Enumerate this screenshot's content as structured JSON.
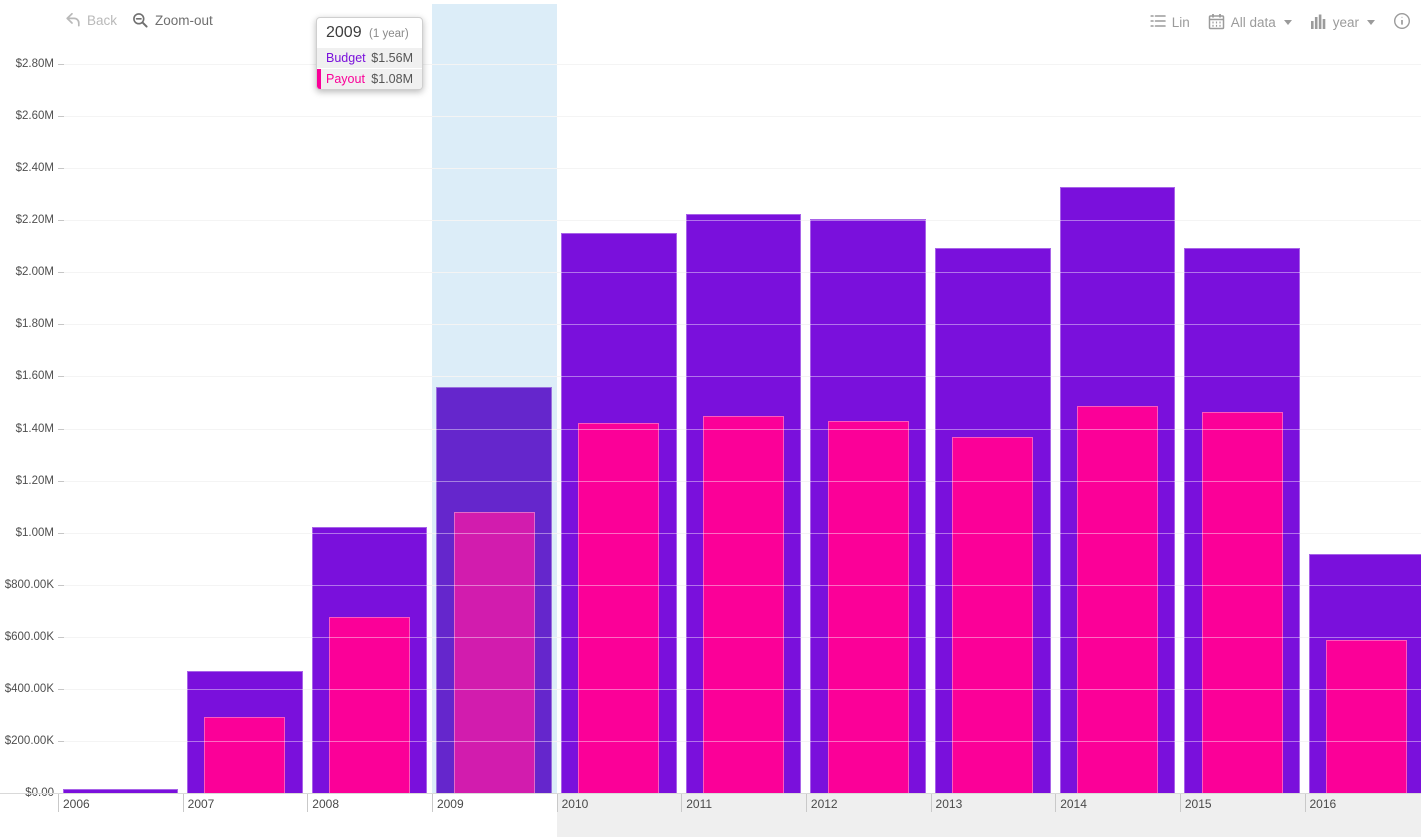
{
  "header": {
    "back_label": "Back",
    "zoom_out_label": "Zoom-out",
    "scale_label": "Lin",
    "range_label": "All data",
    "granularity_label": "year"
  },
  "tooltip": {
    "title": "2009",
    "subtitle": "(1 year)",
    "rows": [
      {
        "label": "Budget",
        "value": "$1.56M"
      },
      {
        "label": "Payout",
        "value": "$1.08M"
      }
    ]
  },
  "colors": {
    "budget": "#7a10dc",
    "payout": "#fb0098",
    "budget_dimmed": "#6526cc",
    "payout_dimmed": "#d21cae",
    "highlight_band": "#dcedf8",
    "tooltip_budget_text": "#7a10dc",
    "tooltip_payout_text": "#fa0098"
  },
  "chart_data": {
    "type": "bar",
    "title": "",
    "xlabel": "",
    "ylabel": "",
    "categories": [
      "2006",
      "2007",
      "2008",
      "2009",
      "2010",
      "2011",
      "2012",
      "2013",
      "2014",
      "2015",
      "2016"
    ],
    "series": [
      {
        "name": "Budget",
        "values": [
          15000,
          467000,
          1020000,
          1560000,
          2150000,
          2225000,
          2205000,
          2095000,
          2328000,
          2095000,
          918000
        ]
      },
      {
        "name": "Payout",
        "values": [
          0,
          292000,
          676000,
          1080000,
          1421000,
          1448000,
          1429000,
          1367000,
          1487000,
          1463000,
          588000
        ]
      }
    ],
    "y_ticks": [
      {
        "label": "$0.00",
        "value": 0
      },
      {
        "label": "$200.00K",
        "value": 200000
      },
      {
        "label": "$400.00K",
        "value": 400000
      },
      {
        "label": "$600.00K",
        "value": 600000
      },
      {
        "label": "$800.00K",
        "value": 800000
      },
      {
        "label": "$1.00M",
        "value": 1000000
      },
      {
        "label": "$1.20M",
        "value": 1200000
      },
      {
        "label": "$1.40M",
        "value": 1400000
      },
      {
        "label": "$1.60M",
        "value": 1600000
      },
      {
        "label": "$1.80M",
        "value": 1800000
      },
      {
        "label": "$2.00M",
        "value": 2000000
      },
      {
        "label": "$2.20M",
        "value": 2200000
      },
      {
        "label": "$2.40M",
        "value": 2400000
      },
      {
        "label": "$2.60M",
        "value": 2600000
      },
      {
        "label": "$2.80M",
        "value": 2800000
      }
    ],
    "ylim": [
      0,
      3046000
    ],
    "grid": true,
    "legend_position": "tooltip",
    "highlighted_category": "2009"
  }
}
